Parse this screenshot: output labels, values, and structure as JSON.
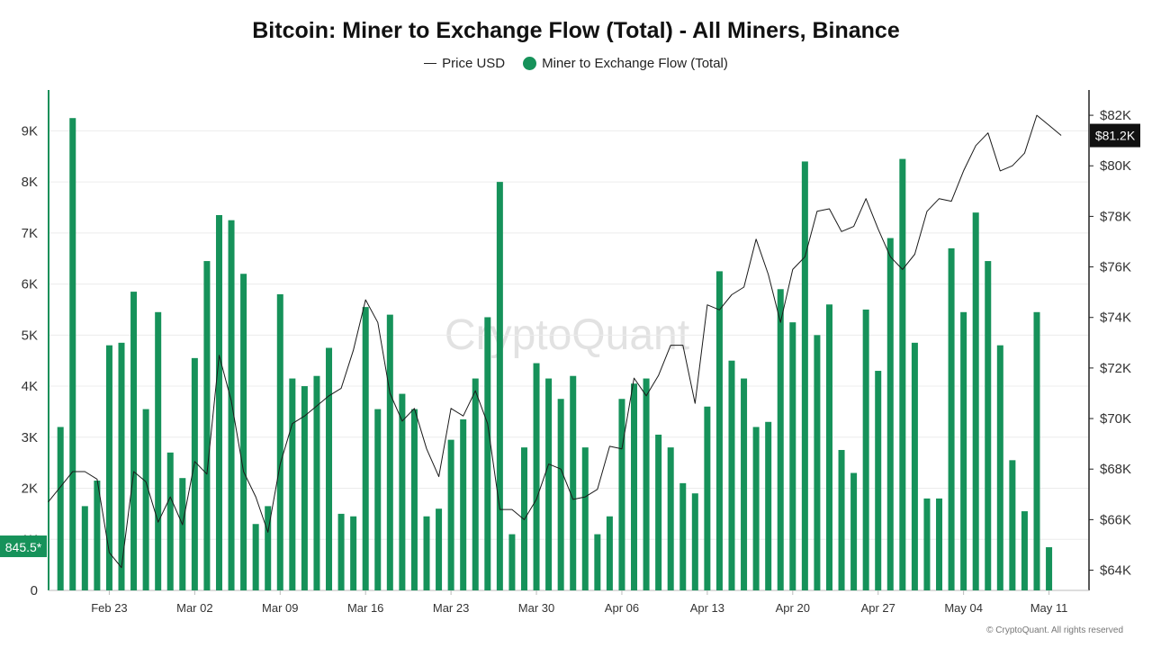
{
  "chart_data": {
    "type": "bar",
    "title": "Bitcoin: Miner to Exchange Flow (Total) - All Miners, Binance",
    "watermark": "CryptoQuant",
    "footer": "© CryptoQuant. All rights reserved",
    "legend": {
      "placement": "top-center"
    },
    "grid": true,
    "colors": {
      "bar": "#16925a",
      "line": "#1a1a1a",
      "left_axis": "#17905a",
      "right_axis": "#222222",
      "grid": "#ececec"
    },
    "x_ticks": [
      "Feb 23",
      "Mar 02",
      "Mar 09",
      "Mar 16",
      "Mar 23",
      "Mar 30",
      "Apr 06",
      "Apr 13",
      "Apr 20",
      "Apr 27",
      "May 04",
      "May 11"
    ],
    "y_left": {
      "ticks": [
        "0",
        "1K",
        "2K",
        "3K",
        "4K",
        "5K",
        "6K",
        "7K",
        "8K",
        "9K"
      ],
      "lim": [
        0,
        9800
      ]
    },
    "y_right": {
      "ticks": [
        "$64K",
        "$66K",
        "$68K",
        "$70K",
        "$72K",
        "$74K",
        "$76K",
        "$78K",
        "$80K",
        "$82K"
      ],
      "lim": [
        63200,
        83000
      ]
    },
    "series": [
      {
        "name": "Miner to Exchange Flow (Total)",
        "kind": "bar",
        "axis": "left",
        "last_label": "845.5*",
        "values": [
          3200,
          9250,
          1650,
          2150,
          4800,
          4850,
          5850,
          3550,
          5450,
          2700,
          2200,
          4550,
          6450,
          7350,
          7250,
          6200,
          1300,
          1650,
          5800,
          4150,
          4000,
          4200,
          4750,
          1500,
          1450,
          5550,
          3550,
          5400,
          3850,
          3550,
          1450,
          1600,
          2950,
          3350,
          4150,
          5350,
          8000,
          1100,
          2800,
          4450,
          4150,
          3750,
          4200,
          2800,
          1100,
          1450,
          3750,
          4050,
          4150,
          3050,
          2800,
          2100,
          1900,
          3600,
          6250,
          4500,
          4150,
          3200,
          3300,
          5900,
          5250,
          8400,
          5000,
          5600,
          2750,
          2300,
          5500,
          4300,
          6900,
          8450,
          4850,
          1800,
          1800,
          6700,
          5450,
          7400,
          6450,
          4800,
          2550,
          1550,
          5450,
          845.5
        ]
      },
      {
        "name": "Price USD",
        "kind": "line",
        "axis": "right",
        "last_label": "$81.2K",
        "values": [
          66700,
          67300,
          67900,
          67900,
          67600,
          64700,
          64100,
          67900,
          67500,
          65900,
          66900,
          65800,
          68300,
          67800,
          72500,
          70700,
          67900,
          66900,
          65500,
          68200,
          69800,
          70100,
          70500,
          70900,
          71200,
          72700,
          74700,
          73800,
          71000,
          69900,
          70400,
          68800,
          67700,
          70400,
          70100,
          71100,
          69800,
          66400,
          66400,
          66000,
          66800,
          68200,
          68000,
          66800,
          66900,
          67200,
          68900,
          68800,
          71600,
          70900,
          71700,
          72900,
          72900,
          70600,
          74500,
          74300,
          74900,
          75200,
          77100,
          75700,
          73800,
          75900,
          76400,
          78200,
          78300,
          77400,
          77600,
          78700,
          77500,
          76400,
          75900,
          76500,
          78200,
          78700,
          78600,
          79800,
          80800,
          81300,
          79800,
          80000,
          80500,
          82000,
          81600,
          81200
        ]
      }
    ]
  }
}
